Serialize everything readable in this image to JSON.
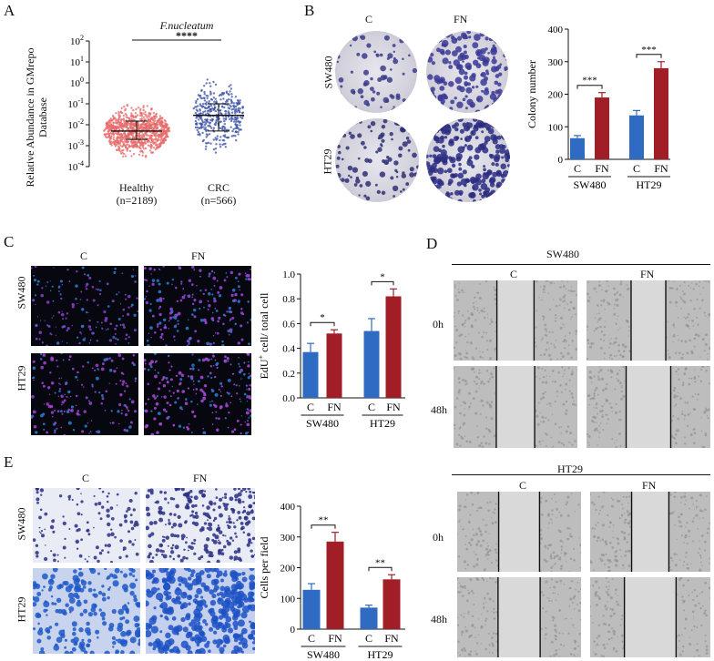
{
  "panels": {
    "A": {
      "label": "A",
      "title": "F.nucleatum",
      "significance": "****",
      "y_axis_label": [
        "Relative Abundance in GMrepo",
        "Database"
      ],
      "group1": {
        "name": "Healthy",
        "n": "(n=2189)",
        "color": "#e56a6a"
      },
      "group2": {
        "name": "CRC",
        "n": "(n=566)",
        "color": "#3a4fa6"
      }
    },
    "B": {
      "label": "B",
      "col_labels": [
        "C",
        "FN"
      ],
      "row_labels": [
        "SW480",
        "HT29"
      ]
    },
    "C": {
      "label": "C",
      "col_labels": [
        "C",
        "FN"
      ],
      "row_labels": [
        "SW480",
        "HT29"
      ]
    },
    "D": {
      "label": "D",
      "group1": "SW480",
      "group2": "HT29",
      "col_labels": [
        "C",
        "FN"
      ],
      "row_labels": [
        "0h",
        "48h"
      ]
    },
    "E": {
      "label": "E",
      "col_labels": [
        "C",
        "FN"
      ],
      "row_labels": [
        "SW480",
        "HT29"
      ]
    }
  },
  "chart_data": [
    {
      "panel": "A",
      "type": "scatter",
      "title": "F.nucleatum",
      "categories": [
        "Healthy\n(n=2189)",
        "CRC\n(n=566)"
      ],
      "ylabel": "Relative Abundance in GMrepo Database",
      "yscale": "log",
      "ylim": [
        0.0001,
        100
      ],
      "yticks": [
        "10^-4",
        "10^-3",
        "10^-2",
        "10^-1",
        "10^0",
        "10^1",
        "10^2"
      ],
      "series": [
        {
          "name": "Healthy",
          "median": 0.005,
          "q1": 0.002,
          "q3": 0.015,
          "min": 0.0001,
          "max": 50
        },
        {
          "name": "CRC",
          "median": 0.028,
          "q1": 0.005,
          "q3": 0.1,
          "min": 0.0002,
          "max": 20
        }
      ],
      "significance": "****"
    },
    {
      "panel": "B",
      "type": "bar",
      "categories": [
        "C",
        "FN",
        "C",
        "FN"
      ],
      "groups": [
        "SW480",
        "HT29"
      ],
      "ylabel": "Colony number",
      "ylim": [
        0,
        400
      ],
      "yticks": [
        0,
        100,
        200,
        300,
        400
      ],
      "values": [
        65,
        190,
        135,
        280
      ],
      "errors": [
        8,
        15,
        15,
        20
      ],
      "significance": [
        "***",
        "***"
      ]
    },
    {
      "panel": "C",
      "type": "bar",
      "categories": [
        "C",
        "FN",
        "C",
        "FN"
      ],
      "groups": [
        "SW480",
        "HT29"
      ],
      "ylabel": "EdU+ cell/ total cell",
      "ylim": [
        0,
        1.0
      ],
      "yticks": [
        "0.0",
        "0.2",
        "0.4",
        "0.6",
        "0.8",
        "1.0"
      ],
      "values": [
        0.37,
        0.52,
        0.54,
        0.82
      ],
      "errors": [
        0.07,
        0.03,
        0.1,
        0.06
      ],
      "significance": [
        "*",
        "*"
      ]
    },
    {
      "panel": "E",
      "type": "bar",
      "categories": [
        "C",
        "FN",
        "C",
        "FN"
      ],
      "groups": [
        "SW480",
        "HT29"
      ],
      "ylabel": "Cells per field",
      "ylim": [
        0,
        400
      ],
      "yticks": [
        0,
        100,
        200,
        300,
        400
      ],
      "values": [
        128,
        285,
        70,
        162
      ],
      "errors": [
        20,
        30,
        8,
        15
      ],
      "significance": [
        "**",
        "**"
      ]
    }
  ],
  "colors": {
    "control": "#2f6bc2",
    "fn": "#a11e26"
  }
}
